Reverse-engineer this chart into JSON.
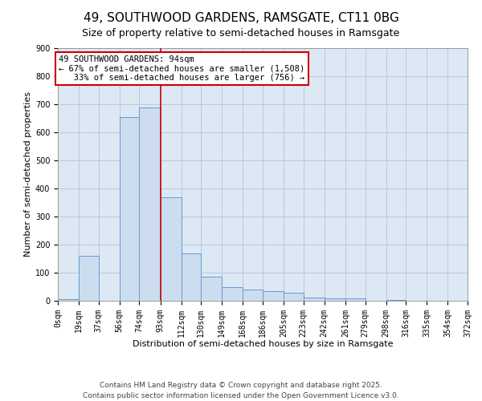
{
  "title1": "49, SOUTHWOOD GARDENS, RAMSGATE, CT11 0BG",
  "title2": "Size of property relative to semi-detached houses in Ramsgate",
  "xlabel": "Distribution of semi-detached houses by size in Ramsgate",
  "ylabel": "Number of semi-detached properties",
  "bin_labels": [
    "0sqm",
    "19sqm",
    "37sqm",
    "56sqm",
    "74sqm",
    "93sqm",
    "112sqm",
    "130sqm",
    "149sqm",
    "168sqm",
    "186sqm",
    "205sqm",
    "223sqm",
    "242sqm",
    "261sqm",
    "279sqm",
    "298sqm",
    "316sqm",
    "335sqm",
    "354sqm",
    "372sqm"
  ],
  "bin_edges": [
    0,
    19,
    37,
    56,
    74,
    93,
    112,
    130,
    149,
    168,
    186,
    205,
    223,
    242,
    261,
    279,
    298,
    316,
    335,
    354,
    372
  ],
  "bar_heights": [
    5,
    160,
    0,
    655,
    690,
    370,
    170,
    85,
    50,
    40,
    35,
    30,
    12,
    10,
    10,
    0,
    3,
    0,
    0,
    0
  ],
  "bar_color": "#ccddf0",
  "bar_edge_color": "#6699cc",
  "background_color": "#ffffff",
  "plot_bg_color": "#dde8f5",
  "grid_color": "#b8c8dc",
  "property_line_x": 93,
  "annotation_text": "49 SOUTHWOOD GARDENS: 94sqm\n← 67% of semi-detached houses are smaller (1,508)\n   33% of semi-detached houses are larger (756) →",
  "annotation_box_color": "#ffffff",
  "annotation_box_edge": "#cc0000",
  "vline_color": "#cc0000",
  "footer1": "Contains HM Land Registry data © Crown copyright and database right 2025.",
  "footer2": "Contains public sector information licensed under the Open Government Licence v3.0.",
  "ylim": [
    0,
    900
  ],
  "yticks": [
    0,
    100,
    200,
    300,
    400,
    500,
    600,
    700,
    800,
    900
  ],
  "title1_fontsize": 11,
  "title2_fontsize": 9,
  "axis_label_fontsize": 8,
  "tick_fontsize": 7,
  "annotation_fontsize": 7.5,
  "footer_fontsize": 6.5
}
